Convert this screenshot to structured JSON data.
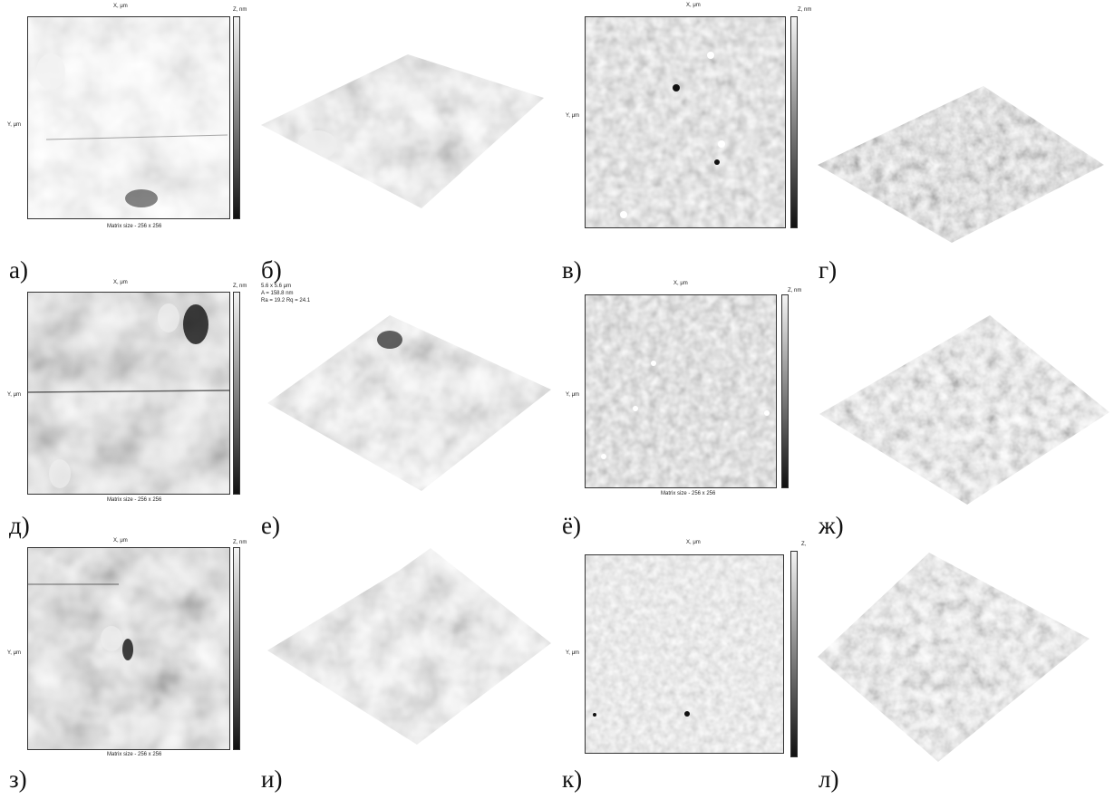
{
  "labels": {
    "a": "а)",
    "b": "б)",
    "v": "в)",
    "g": "г)",
    "d": "д)",
    "e": "е)",
    "yo": "ё)",
    "zh": "ж)",
    "z": "з)",
    "i": "и)",
    "k": "к)",
    "l": "л)"
  },
  "afm": {
    "x_axis": "X, μm",
    "y_axis": "Y, μm",
    "z_axis": "Z, nm",
    "z_axis_short": "Z, ",
    "matrix_a": "Matrix size - 256 x 256",
    "matrix_d": "Matrix size - 256 x 256",
    "matrix_yo": "Matrix size - 256 x 256",
    "matrix_z": "Matrix size - 256 x 256"
  },
  "scan_info_e": {
    "size": "5.6 x 5.6 μm",
    "height": "A = 158.8 nm",
    "roughness": "Ra = 19.2   Rq = 24.1"
  },
  "colors": {
    "label_text": "#111111",
    "scale_top": "#f4f4f4",
    "scale_bottom": "#111111"
  }
}
